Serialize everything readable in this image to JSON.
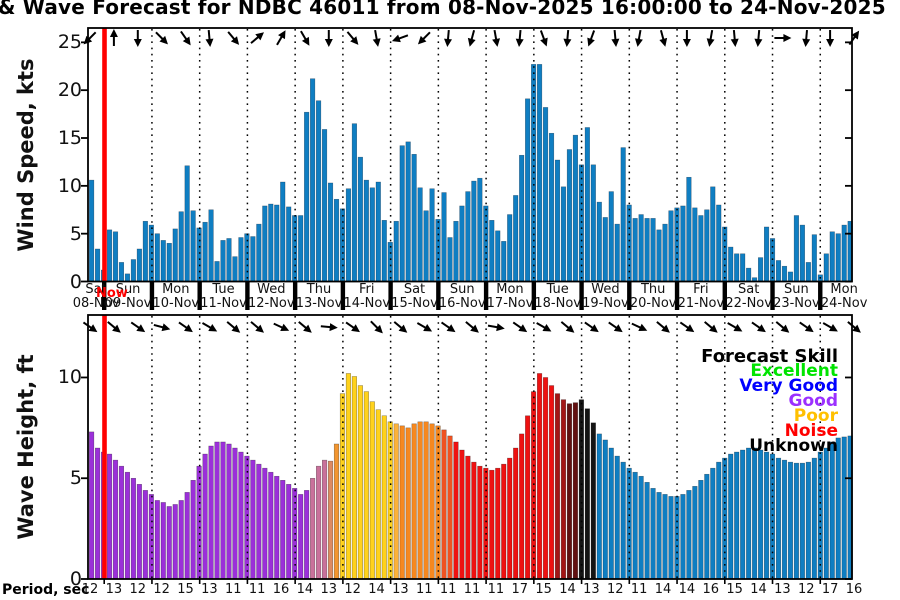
{
  "title": "& Wave Forecast for NDBC 46011 from 08-Nov-2025 16:00:00 to 24-Nov-2025",
  "now_label": "Now",
  "axes": {
    "wind_label": "Wind Speed, kts",
    "wind_ticks": [
      0,
      5,
      10,
      15,
      20,
      25
    ],
    "wave_label": "Wave Height, ft",
    "wave_ticks": [
      0,
      5,
      10
    ],
    "period_label": "Period, sec"
  },
  "days": [
    {
      "name": "Sat",
      "date": "08-Nov"
    },
    {
      "name": "Sun",
      "date": "09-Nov"
    },
    {
      "name": "Mon",
      "date": "10-Nov"
    },
    {
      "name": "Tue",
      "date": "11-Nov"
    },
    {
      "name": "Wed",
      "date": "12-Nov"
    },
    {
      "name": "Thu",
      "date": "13-Nov"
    },
    {
      "name": "Fri",
      "date": "14-Nov"
    },
    {
      "name": "Sat",
      "date": "15-Nov"
    },
    {
      "name": "Sun",
      "date": "16-Nov"
    },
    {
      "name": "Mon",
      "date": "17-Nov"
    },
    {
      "name": "Tue",
      "date": "18-Nov"
    },
    {
      "name": "Wed",
      "date": "19-Nov"
    },
    {
      "name": "Thu",
      "date": "20-Nov"
    },
    {
      "name": "Fri",
      "date": "21-Nov"
    },
    {
      "name": "Sat",
      "date": "22-Nov"
    },
    {
      "name": "Sun",
      "date": "23-Nov"
    },
    {
      "name": "Mon",
      "date": "24-Nov"
    }
  ],
  "legend": {
    "title": "Forecast Skill",
    "entries": [
      {
        "label": "Excellent",
        "color": "#00e400"
      },
      {
        "label": "Very Good",
        "color": "#0000ff"
      },
      {
        "label": "Good",
        "color": "#9b30ff"
      },
      {
        "label": "Poor",
        "color": "#ffc000"
      },
      {
        "label": "Noise",
        "color": "#ff0000"
      },
      {
        "label": "Unknown",
        "color": "#000000"
      }
    ]
  },
  "palette": {
    "model": "#0f7ec2",
    "good": "#9b30d9",
    "pink": "#c9719b",
    "salmon": "#dd8a60",
    "orange": "#f2952f",
    "gold": "#ffd21c",
    "amber": "#fbb23a",
    "deeporange": "#f6881f",
    "orangered": "#ef5222",
    "red": "#ee1111",
    "darkred": "#a41616",
    "maroon": "#621010",
    "black": "#141414",
    "now_line": "#ff0000",
    "arrow": "#000000"
  },
  "chart_data": [
    {
      "type": "bar",
      "name": "wind_speed_kts",
      "ylabel": "Wind Speed, kts",
      "ylim": [
        0,
        26.5
      ],
      "step_hours": 3,
      "values": [
        10.6,
        3.4,
        1.2,
        5.4,
        5.2,
        2.0,
        0.8,
        2.3,
        3.4,
        6.3,
        5.9,
        5.0,
        4.3,
        4.0,
        5.5,
        7.3,
        12.1,
        7.4,
        5.6,
        6.2,
        7.5,
        2.1,
        4.3,
        4.5,
        2.6,
        4.6,
        5.0,
        4.7,
        6.0,
        7.9,
        8.1,
        8.0,
        10.4,
        7.8,
        6.9,
        6.9,
        17.7,
        21.2,
        18.9,
        15.9,
        10.3,
        8.6,
        7.6,
        9.7,
        16.5,
        13.0,
        10.6,
        9.8,
        10.4,
        6.4,
        4.1,
        6.3,
        14.2,
        14.6,
        13.3,
        9.8,
        7.4,
        9.7,
        6.5,
        9.3,
        4.6,
        6.3,
        7.9,
        9.4,
        10.5,
        10.8,
        7.9,
        6.4,
        5.3,
        4.2,
        7.0,
        9.0,
        13.2,
        19.1,
        22.7,
        22.7,
        18.2,
        15.5,
        12.7,
        9.9,
        13.8,
        15.3,
        12.2,
        16.1,
        12.2,
        8.3,
        6.7,
        9.4,
        6.0,
        14.0,
        8.0,
        6.6,
        7.0,
        6.6,
        6.6,
        5.4,
        6.0,
        7.4,
        7.7,
        7.9,
        10.9,
        7.7,
        6.9,
        7.5,
        9.9,
        8.0,
        5.7,
        3.6,
        2.9,
        2.9,
        1.4,
        0.4,
        2.5,
        5.7,
        4.5,
        2.2,
        1.6,
        1.0,
        6.9,
        5.9,
        2.0,
        4.9,
        0.7,
        2.9,
        5.2,
        5.0,
        5.9,
        6.3
      ],
      "arrows_deg": [
        135,
        270,
        90,
        45,
        55,
        85,
        50,
        320,
        300,
        60,
        90,
        50,
        80,
        160,
        135,
        95,
        105,
        80,
        95,
        70,
        95,
        110,
        85,
        100,
        75,
        90,
        100,
        85,
        95,
        0,
        95,
        90,
        305
      ]
    },
    {
      "type": "bar",
      "name": "wave_height_ft",
      "ylabel": "Wave Height, ft",
      "ylim": [
        0,
        13.1
      ],
      "step_hours": 3,
      "values": [
        7.3,
        6.5,
        6.3,
        6.2,
        5.9,
        5.6,
        5.3,
        5.0,
        4.7,
        4.4,
        4.2,
        3.9,
        3.8,
        3.6,
        3.7,
        3.9,
        4.3,
        4.9,
        5.6,
        6.2,
        6.6,
        6.8,
        6.8,
        6.7,
        6.5,
        6.3,
        6.1,
        5.9,
        5.7,
        5.5,
        5.3,
        5.1,
        4.9,
        4.7,
        4.5,
        4.2,
        4.4,
        5.0,
        5.6,
        5.9,
        5.85,
        6.7,
        9.2,
        10.2,
        10.05,
        9.6,
        9.3,
        8.8,
        8.4,
        8.1,
        7.8,
        7.7,
        7.6,
        7.5,
        7.7,
        7.8,
        7.8,
        7.7,
        7.6,
        7.4,
        7.1,
        6.8,
        6.4,
        6.1,
        5.8,
        5.6,
        5.5,
        5.4,
        5.5,
        5.7,
        6.0,
        6.5,
        7.2,
        8.1,
        9.3,
        10.2,
        10.0,
        9.6,
        9.2,
        8.9,
        8.7,
        8.75,
        8.9,
        8.45,
        7.75,
        7.2,
        6.9,
        6.5,
        6.1,
        5.8,
        5.5,
        5.3,
        5.1,
        4.8,
        4.5,
        4.3,
        4.2,
        4.1,
        4.1,
        4.2,
        4.4,
        4.6,
        4.9,
        5.2,
        5.5,
        5.8,
        6.0,
        6.2,
        6.3,
        6.4,
        6.5,
        6.5,
        6.4,
        6.3,
        6.2,
        6.0,
        5.9,
        5.8,
        5.75,
        5.75,
        5.8,
        6.0,
        6.3,
        6.5,
        6.8,
        7.0,
        7.05,
        7.1
      ],
      "skill_runs": [
        [
          "good",
          37
        ],
        [
          "pink",
          3
        ],
        [
          "salmon",
          1
        ],
        [
          "orange",
          1
        ],
        [
          "gold",
          9
        ],
        [
          "amber",
          1
        ],
        [
          "deeporange",
          7
        ],
        [
          "orangered",
          2
        ],
        [
          "red",
          17
        ],
        [
          "darkred",
          2
        ],
        [
          "maroon",
          2
        ],
        [
          "black",
          3
        ],
        [
          "model",
          43
        ]
      ],
      "arrows_deg": [
        35,
        40,
        35,
        15,
        35,
        30,
        40,
        40,
        25,
        40,
        5,
        35,
        45,
        40,
        30,
        35,
        40,
        10,
        35,
        30,
        40,
        35,
        35,
        25,
        40,
        35,
        40,
        30,
        35,
        40,
        35,
        30,
        40
      ],
      "periods_sec": [
        12,
        13,
        12,
        12,
        15,
        13,
        11,
        11,
        16,
        14,
        13,
        12,
        14,
        13,
        11,
        11,
        11,
        11,
        17,
        15,
        14,
        13,
        12,
        11,
        14,
        14,
        16,
        15,
        14,
        13,
        12,
        17,
        16
      ]
    }
  ]
}
